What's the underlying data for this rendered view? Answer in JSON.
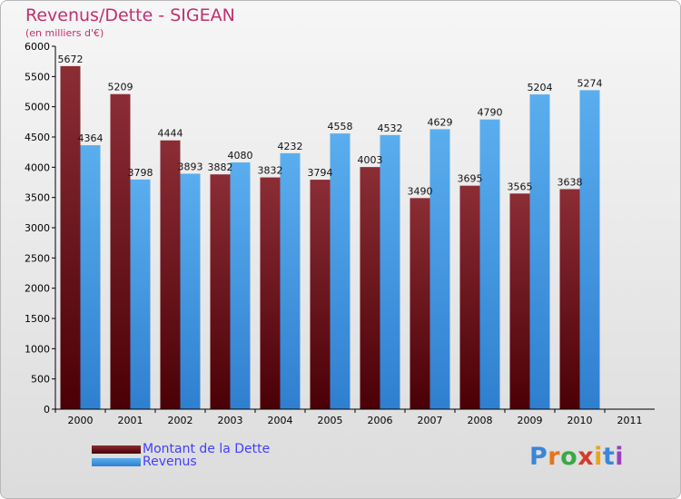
{
  "title": "Revenus/Dette - SIGEAN",
  "subtitle": "(en milliers d'€)",
  "colors": {
    "title": "#c0306f",
    "dette": "#7a1e26",
    "revenus": "#4a9fe6",
    "legend_text": "#4040ff"
  },
  "legend": {
    "dette_label": "Montant de la Dette",
    "revenus_label": "Revenus"
  },
  "logo": {
    "text": "Proxiti"
  },
  "chart_data": {
    "type": "bar",
    "categories": [
      "2000",
      "2001",
      "2002",
      "2003",
      "2004",
      "2005",
      "2006",
      "2007",
      "2008",
      "2009",
      "2010",
      "2011"
    ],
    "series": [
      {
        "name": "Montant de la Dette",
        "values": [
          5672,
          5209,
          4444,
          3882,
          3832,
          3794,
          4003,
          3490,
          3695,
          3565,
          3638,
          null
        ]
      },
      {
        "name": "Revenus",
        "values": [
          4364,
          3798,
          3893,
          4080,
          4232,
          4558,
          4532,
          4629,
          4790,
          5204,
          5274,
          null
        ]
      }
    ],
    "ylim": [
      0,
      6000
    ],
    "yticks": [
      0,
      500,
      1000,
      1500,
      2000,
      2500,
      3000,
      3500,
      4000,
      4500,
      5000,
      5500,
      6000
    ],
    "grid": false,
    "legend_position": "bottom-left",
    "title": "Revenus/Dette - SIGEAN",
    "ylabel": "(en milliers d'€)",
    "xlabel": ""
  }
}
